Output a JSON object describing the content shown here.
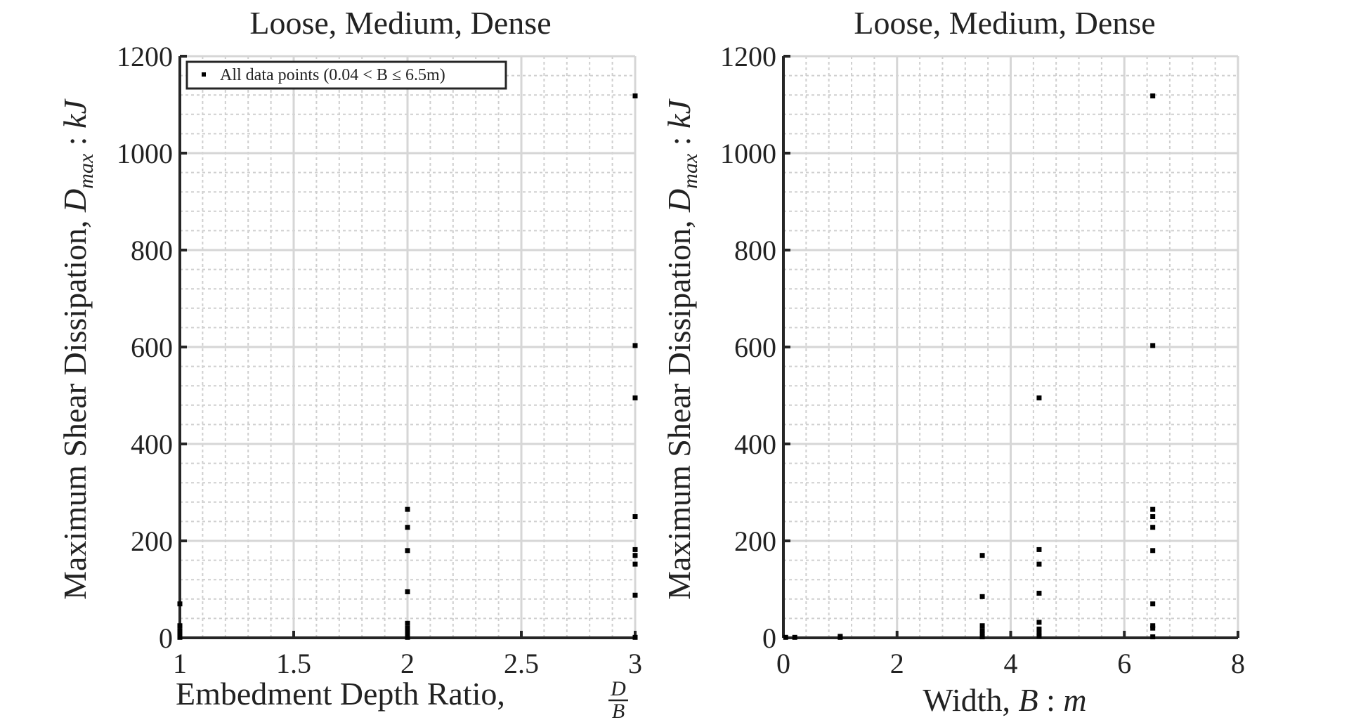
{
  "chart_data": [
    {
      "type": "scatter",
      "title": "Loose, Medium, Dense",
      "xlabel": "Embedment Depth Ratio, D/B",
      "ylabel": "Maximum Shear Dissipation, D_max : kJ",
      "xlim": [
        1,
        3
      ],
      "ylim": [
        0,
        1200
      ],
      "xticks": [
        1,
        1.5,
        2,
        2.5,
        3
      ],
      "yticks": [
        0,
        200,
        400,
        600,
        800,
        1000,
        1200
      ],
      "xtick_labels": [
        "1",
        "1.5",
        "2",
        "2.5",
        "3"
      ],
      "ytick_labels": [
        "0",
        "200",
        "400",
        "600",
        "800",
        "1000",
        "1200"
      ],
      "grid": true,
      "minor_grid": true,
      "legend": {
        "position": "top-left",
        "entries": [
          "All data points (0.04 < B ≤ 6.5m)"
        ]
      },
      "series": [
        {
          "name": "All data points (0.04 < B ≤ 6.5m)",
          "color": "#000000",
          "marker": "square",
          "x": [
            1,
            1,
            1,
            1,
            1,
            1,
            2,
            2,
            2,
            2,
            2,
            2,
            2,
            2,
            2,
            2,
            3,
            3,
            3,
            3,
            3,
            3,
            3,
            3,
            3
          ],
          "y": [
            70,
            25,
            15,
            8,
            3,
            1,
            265,
            228,
            180,
            95,
            30,
            20,
            12,
            6,
            3,
            1,
            1118,
            603,
            495,
            250,
            182,
            170,
            152,
            88,
            1
          ]
        }
      ]
    },
    {
      "type": "scatter",
      "title": "Loose, Medium, Dense",
      "xlabel": "Width, B : m",
      "ylabel": "Maximum Shear Dissipation, D_max : kJ",
      "xlim": [
        0,
        8
      ],
      "ylim": [
        0,
        1200
      ],
      "xticks": [
        0,
        2,
        4,
        6,
        8
      ],
      "yticks": [
        0,
        200,
        400,
        600,
        800,
        1000,
        1200
      ],
      "xtick_labels": [
        "0",
        "2",
        "4",
        "6",
        "8"
      ],
      "ytick_labels": [
        "0",
        "200",
        "400",
        "600",
        "800",
        "1000",
        "1200"
      ],
      "grid": true,
      "minor_grid": true,
      "series": [
        {
          "color": "#000000",
          "marker": "square",
          "x": [
            0.04,
            0.2,
            1,
            1,
            3.5,
            3.5,
            3.5,
            3.5,
            3.5,
            3.5,
            4.5,
            4.5,
            4.5,
            4.5,
            4.5,
            4.5,
            4.5,
            4.5,
            6.5,
            6.5,
            6.5,
            6.5,
            6.5,
            6.5,
            6.5,
            6.5,
            6.5,
            6.5
          ],
          "y": [
            1,
            1,
            3,
            1,
            170,
            85,
            25,
            15,
            8,
            2,
            495,
            182,
            152,
            92,
            32,
            18,
            10,
            4,
            1118,
            603,
            265,
            250,
            228,
            180,
            70,
            25,
            20,
            2
          ]
        }
      ]
    }
  ]
}
